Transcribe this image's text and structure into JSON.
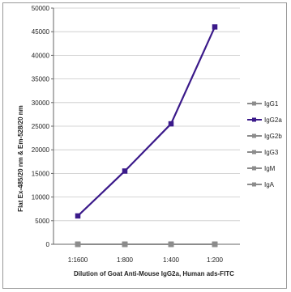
{
  "chart_data": {
    "type": "line",
    "xlabel": "Dilution of Goat Anti-Mouse IgG2a, Human ads-FITC",
    "ylabel": "Flat Ex-485/20 nm & Em-528/20 nm",
    "categories": [
      "1:1600",
      "1:800",
      "1:400",
      "1:200"
    ],
    "ylim": [
      0,
      50000
    ],
    "yticks": [
      0,
      5000,
      10000,
      15000,
      20000,
      25000,
      30000,
      35000,
      40000,
      45000,
      50000
    ],
    "ytick_labels": [
      "0",
      "5000",
      "10000",
      "15000",
      "20000",
      "25000",
      "30000",
      "35000",
      "40000",
      "45000",
      "50000"
    ],
    "grid": true,
    "legend_position": "right",
    "series": [
      {
        "name": "IgG1",
        "values": [
          0,
          0,
          0,
          0
        ],
        "color": "#8c8c8c"
      },
      {
        "name": "IgG2a",
        "values": [
          6000,
          15500,
          25500,
          46000
        ],
        "color": "#3b1a8a"
      },
      {
        "name": "IgG2b",
        "values": [
          0,
          0,
          0,
          0
        ],
        "color": "#8c8c8c"
      },
      {
        "name": "IgG3",
        "values": [
          0,
          0,
          0,
          0
        ],
        "color": "#8c8c8c"
      },
      {
        "name": "IgM",
        "values": [
          0,
          0,
          0,
          0
        ],
        "color": "#8c8c8c"
      },
      {
        "name": "IgA",
        "values": [
          0,
          0,
          0,
          0
        ],
        "color": "#8c8c8c"
      }
    ]
  }
}
